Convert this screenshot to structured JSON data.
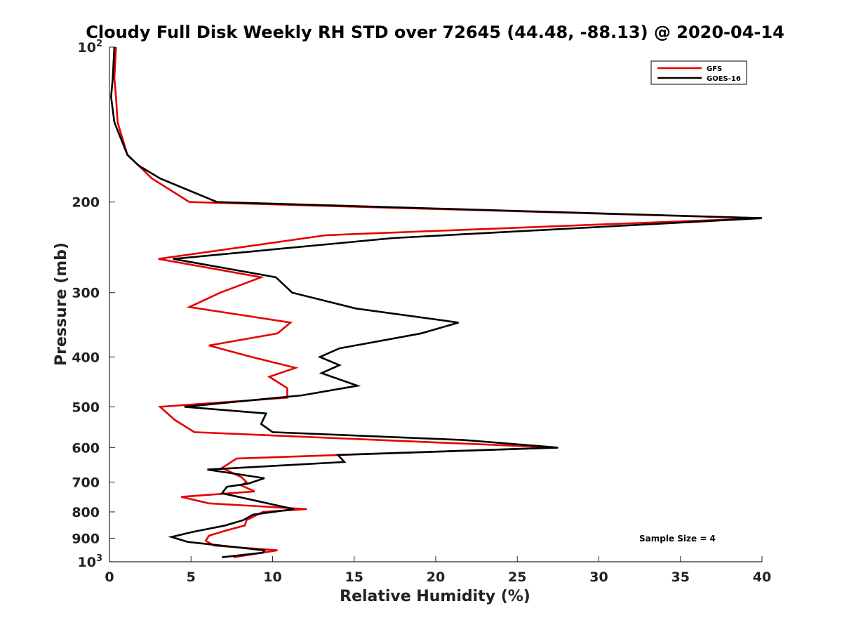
{
  "chart_data": {
    "type": "line",
    "title": "Cloudy Full Disk Weekly RH STD over 72645 (44.48, -88.13) @ 2020-04-14",
    "xlabel": "Relative Humidity (%)",
    "ylabel": "Pressure (mb)",
    "xlim": [
      0,
      40
    ],
    "ylim": [
      100,
      1000
    ],
    "y_scale": "log",
    "y_reversed": true,
    "grid": false,
    "legend_position": "top-right",
    "x_ticks": [
      "0",
      "5",
      "10",
      "15",
      "20",
      "25",
      "30",
      "35",
      "40"
    ],
    "y_ticks": [
      {
        "value": 100,
        "label": "10",
        "exp": "2"
      },
      {
        "value": 200,
        "label": "200",
        "exp": ""
      },
      {
        "value": 300,
        "label": "300",
        "exp": ""
      },
      {
        "value": 400,
        "label": "400",
        "exp": ""
      },
      {
        "value": 500,
        "label": "500",
        "exp": ""
      },
      {
        "value": 600,
        "label": "600",
        "exp": ""
      },
      {
        "value": 700,
        "label": "700",
        "exp": ""
      },
      {
        "value": 800,
        "label": "800",
        "exp": ""
      },
      {
        "value": 900,
        "label": "900",
        "exp": ""
      },
      {
        "value": 1000,
        "label": "10",
        "exp": "3"
      }
    ],
    "series": [
      {
        "name": "GFS",
        "color": "#e60000",
        "points": [
          [
            0.4,
            100
          ],
          [
            0.3,
            115
          ],
          [
            0.4,
            125
          ],
          [
            0.5,
            140
          ],
          [
            1.1,
            162
          ],
          [
            1.8,
            170
          ],
          [
            2.6,
            180
          ],
          [
            4.9,
            200
          ],
          [
            40,
            215
          ],
          [
            13.3,
            232
          ],
          [
            3.0,
            258
          ],
          [
            9.3,
            280
          ],
          [
            6.8,
            300
          ],
          [
            4.9,
            320
          ],
          [
            11.1,
            343
          ],
          [
            10.3,
            360
          ],
          [
            6.1,
            380
          ],
          [
            8.7,
            400
          ],
          [
            11.4,
            420
          ],
          [
            9.8,
            437
          ],
          [
            10.9,
            460
          ],
          [
            10.9,
            480
          ],
          [
            3.1,
            500
          ],
          [
            4.0,
            530
          ],
          [
            5.2,
            560
          ],
          [
            27.5,
            600
          ],
          [
            7.8,
            630
          ],
          [
            6.9,
            657
          ],
          [
            8.1,
            685
          ],
          [
            8.4,
            700
          ],
          [
            8.1,
            711
          ],
          [
            8.9,
            730
          ],
          [
            4.4,
            748
          ],
          [
            6.1,
            770
          ],
          [
            12.1,
            790
          ],
          [
            9.4,
            800
          ],
          [
            8.4,
            830
          ],
          [
            8.3,
            850
          ],
          [
            7.1,
            870
          ],
          [
            6.1,
            890
          ],
          [
            5.9,
            910
          ],
          [
            6.4,
            930
          ],
          [
            10.3,
            950
          ],
          [
            9.4,
            960
          ],
          [
            7.6,
            980
          ]
        ]
      },
      {
        "name": "GOES-16",
        "color": "#000000",
        "points": [
          [
            0.3,
            100
          ],
          [
            0.2,
            115
          ],
          [
            0.1,
            125
          ],
          [
            0.3,
            140
          ],
          [
            1.1,
            162
          ],
          [
            1.8,
            170
          ],
          [
            3.1,
            180
          ],
          [
            6.6,
            200
          ],
          [
            40,
            215
          ],
          [
            17.4,
            235
          ],
          [
            3.9,
            258
          ],
          [
            10.2,
            280
          ],
          [
            11.2,
            300
          ],
          [
            15.1,
            322
          ],
          [
            21.4,
            343
          ],
          [
            19.1,
            360
          ],
          [
            14.1,
            385
          ],
          [
            12.9,
            400
          ],
          [
            14.1,
            415
          ],
          [
            13.0,
            430
          ],
          [
            15.2,
            455
          ],
          [
            11.8,
            475
          ],
          [
            4.6,
            500
          ],
          [
            9.6,
            515
          ],
          [
            9.3,
            540
          ],
          [
            10.0,
            560
          ],
          [
            21.7,
            580
          ],
          [
            27.5,
            600
          ],
          [
            14.0,
            620
          ],
          [
            14.4,
            640
          ],
          [
            6.0,
            662
          ],
          [
            9.5,
            688
          ],
          [
            8.5,
            705
          ],
          [
            7.2,
            715
          ],
          [
            6.9,
            736
          ],
          [
            11.3,
            790
          ],
          [
            8.8,
            810
          ],
          [
            8.2,
            830
          ],
          [
            7.1,
            850
          ],
          [
            5.1,
            875
          ],
          [
            3.8,
            895
          ],
          [
            4.8,
            915
          ],
          [
            9.5,
            950
          ],
          [
            9.4,
            960
          ],
          [
            6.9,
            980
          ]
        ]
      }
    ],
    "annotation": "Sample Size = 4"
  }
}
